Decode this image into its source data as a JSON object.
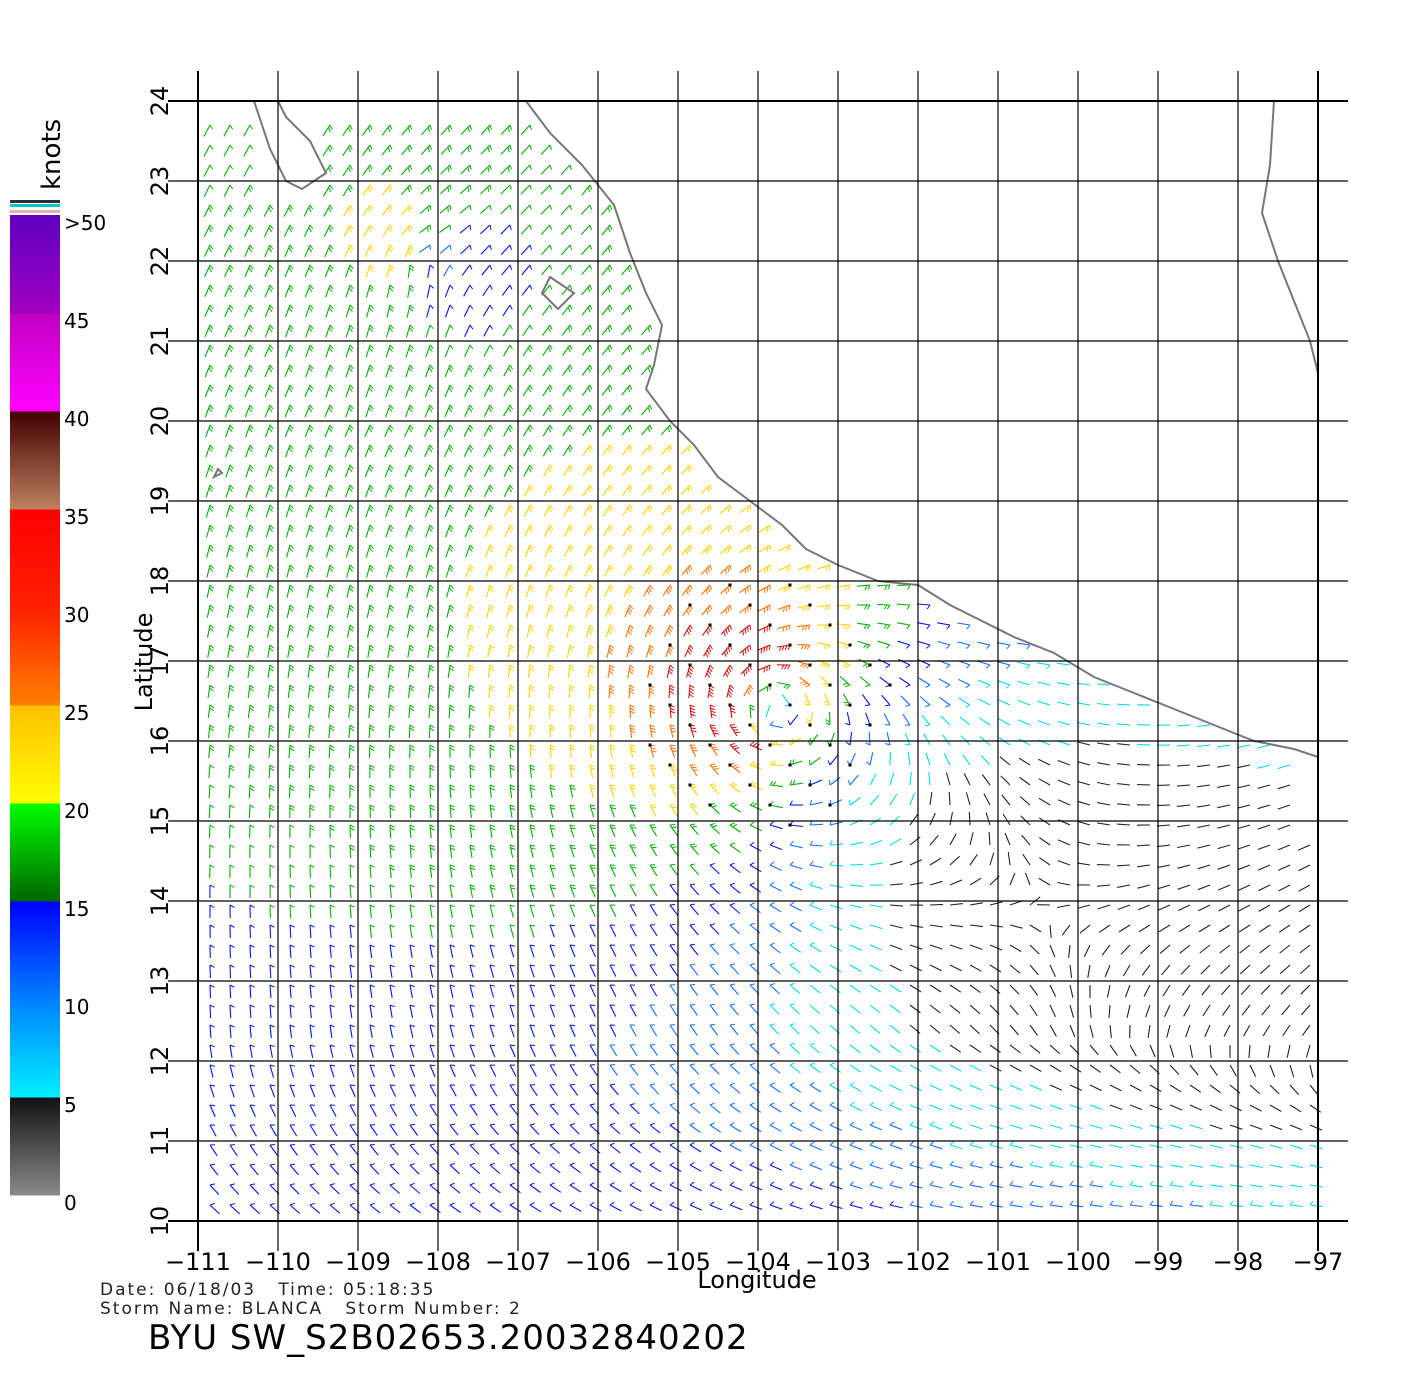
{
  "figure": {
    "x_axis_title": "Longitude",
    "y_axis_title": "Latitude",
    "x_ticks": [
      "−111",
      "−110",
      "−109",
      "−108",
      "−107",
      "−106",
      "−105",
      "−104",
      "−103",
      "−102",
      "−101",
      "−100",
      "−99",
      "−98",
      "−97"
    ],
    "y_ticks": [
      "10",
      "11",
      "12",
      "13",
      "14",
      "15",
      "16",
      "17",
      "18",
      "19",
      "20",
      "21",
      "22",
      "23",
      "24"
    ],
    "lon_range": [
      -111,
      -97
    ],
    "lat_range": [
      10,
      24
    ],
    "grid": true
  },
  "colorbar": {
    "unit_label": "knots",
    "tick_labels": [
      ">50",
      "45",
      "40",
      "35",
      "30",
      "25",
      "20",
      "15",
      "10",
      "5",
      "0"
    ],
    "bands": [
      {
        "from": 0,
        "to": 5,
        "colors": [
          "#8a8a8a",
          "#111111"
        ]
      },
      {
        "from": 5,
        "to": 10,
        "colors": [
          "#00f0ff",
          "#0080ff"
        ]
      },
      {
        "from": 10,
        "to": 15,
        "colors": [
          "#0080ff",
          "#0000ff"
        ]
      },
      {
        "from": 15,
        "to": 20,
        "colors": [
          "#006600",
          "#00ff00"
        ]
      },
      {
        "from": 20,
        "to": 25,
        "colors": [
          "#ffff00",
          "#ffc000"
        ]
      },
      {
        "from": 25,
        "to": 30,
        "colors": [
          "#ff8000",
          "#ff2000"
        ]
      },
      {
        "from": 30,
        "to": 35,
        "colors": [
          "#ff2000",
          "#ff0000"
        ]
      },
      {
        "from": 35,
        "to": 40,
        "colors": [
          "#c08060",
          "#400000"
        ]
      },
      {
        "from": 40,
        "to": 45,
        "colors": [
          "#ff00ff",
          "#c000c0"
        ]
      },
      {
        "from": 45,
        "to": 50,
        "colors": [
          "#a000c0",
          "#6000c0"
        ]
      }
    ]
  },
  "storm": {
    "center_lon": -103.9,
    "center_lat": 16.5,
    "peak_wind_knots": 32
  },
  "wind_colors": {
    "calm": "#222222",
    "light": "#00d8f0",
    "moderate": "#1070ff",
    "fresh": "#0018e0",
    "strong": "#00b000",
    "gale": "#ffd000",
    "storm": "#ff7000",
    "severe": "#d01010"
  },
  "coast_color": "#777777",
  "info": {
    "date_line": "Date: 06/18/03   Time: 05:18:35",
    "storm_line": "Storm Name: BLANCA   Storm Number: 2",
    "product_id": "BYU SW_S2B02653.20032840202"
  }
}
